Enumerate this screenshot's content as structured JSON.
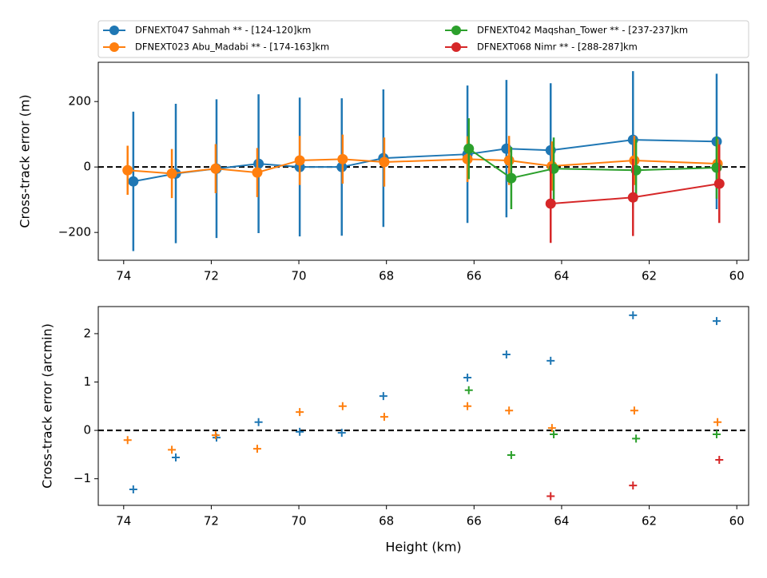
{
  "chart_data": [
    {
      "type": "line",
      "ylabel": "Cross-track error (m)",
      "legend": "top",
      "legend_columns": 2,
      "reference_line": 0,
      "xlim": [
        74.58,
        59.73
      ],
      "xticks": [
        74,
        72,
        70,
        68,
        66,
        64,
        62,
        60
      ],
      "ylim": [
        -285,
        320
      ],
      "yticks": [
        {
          "value": -200,
          "label": "−200"
        },
        0,
        200
      ],
      "series": [
        {
          "name": "DFNEXT047 Sahmah **  - [124-120]km",
          "color": "#1f77b4",
          "x": [
            73.78,
            72.81,
            71.88,
            70.92,
            69.98,
            69.02,
            68.07,
            66.15,
            65.26,
            64.25,
            62.37,
            60.46
          ],
          "values": [
            -44,
            -20,
            -5,
            10,
            0,
            0,
            27,
            39,
            56,
            51,
            83,
            78
          ],
          "errors": [
            213,
            213,
            212,
            212,
            212,
            210,
            210,
            210,
            210,
            205,
            210,
            207
          ]
        },
        {
          "name": "DFNEXT023 Abu_Madabi **  - [174-163]km",
          "color": "#ff7f0e",
          "x": [
            73.91,
            72.9,
            71.9,
            70.95,
            69.98,
            69.0,
            68.05,
            66.15,
            65.2,
            64.22,
            62.34,
            60.44
          ],
          "values": [
            -10,
            -20,
            -5,
            -17,
            20,
            24,
            15,
            24,
            20,
            3,
            20,
            10
          ],
          "errors": [
            75,
            75,
            75,
            75,
            75,
            75,
            75,
            70,
            75,
            75,
            75,
            75
          ]
        },
        {
          "name": "DFNEXT042 Maqshan_Tower **  - [237-237]km",
          "color": "#2ca02c",
          "x": [
            66.12,
            65.15,
            64.18,
            62.3,
            60.46
          ],
          "values": [
            56,
            -34,
            -5,
            -10,
            -2
          ],
          "errors": [
            93,
            95,
            95,
            95,
            95
          ]
        },
        {
          "name": "DFNEXT068 Nimr **  - [288-287]km",
          "color": "#d62728",
          "x": [
            64.25,
            62.37,
            60.4
          ],
          "values": [
            -112,
            -93,
            -51
          ],
          "errors": [
            120,
            118,
            120
          ]
        }
      ]
    },
    {
      "type": "scatter",
      "xlabel": "Height (km)",
      "ylabel": "Cross-track error (arcmin)",
      "reference_line": 0,
      "xlim": [
        74.58,
        59.73
      ],
      "xticks": [
        74,
        72,
        70,
        68,
        66,
        64,
        62,
        60
      ],
      "ylim": [
        -1.55,
        2.56
      ],
      "yticks": [
        {
          "value": -1,
          "label": "−1"
        },
        0,
        1,
        2
      ],
      "series": [
        {
          "color": "#1f77b4",
          "x": [
            73.78,
            72.81,
            71.88,
            70.92,
            69.98,
            69.02,
            68.07,
            66.15,
            65.26,
            64.25,
            62.37,
            60.46
          ],
          "values": [
            -1.22,
            -0.56,
            -0.15,
            0.17,
            -0.03,
            -0.05,
            0.71,
            1.09,
            1.57,
            1.44,
            2.38,
            2.26
          ]
        },
        {
          "color": "#ff7f0e",
          "x": [
            73.91,
            72.9,
            71.9,
            70.95,
            69.98,
            69.0,
            68.05,
            66.15,
            65.2,
            64.22,
            62.34,
            60.44
          ],
          "values": [
            -0.2,
            -0.4,
            -0.1,
            -0.38,
            0.38,
            0.5,
            0.28,
            0.5,
            0.41,
            0.05,
            0.41,
            0.17
          ]
        },
        {
          "color": "#2ca02c",
          "x": [
            66.12,
            65.15,
            64.18,
            62.3,
            60.46
          ],
          "values": [
            0.83,
            -0.51,
            -0.08,
            -0.17,
            -0.08
          ]
        },
        {
          "color": "#d62728",
          "x": [
            64.25,
            62.37,
            60.4
          ],
          "values": [
            -1.36,
            -1.14,
            -0.61
          ]
        }
      ]
    }
  ]
}
